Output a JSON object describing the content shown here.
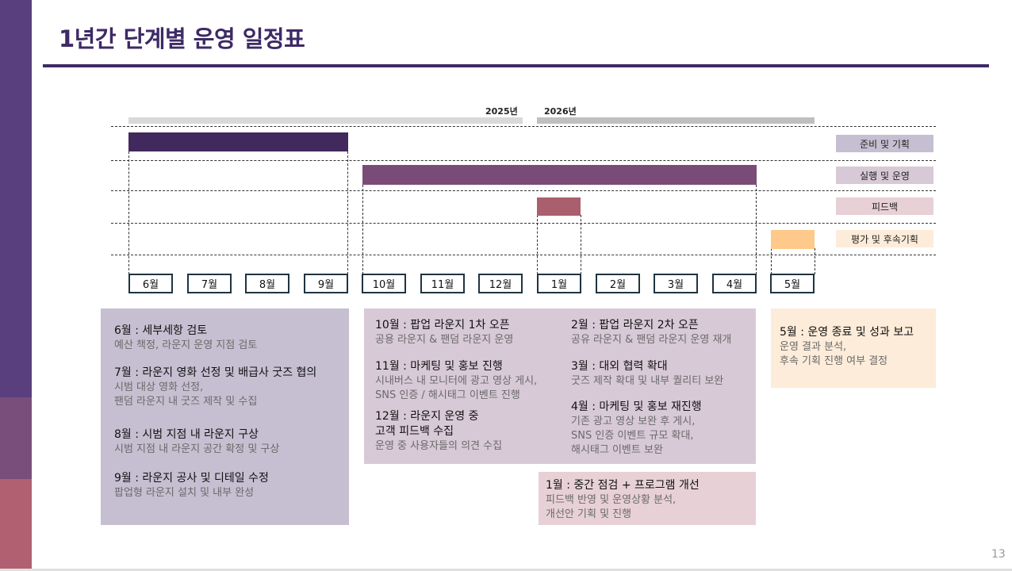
{
  "title": "1년간 단계별 운영 일정표",
  "page_number": "13",
  "years": [
    "2025년",
    "2026년"
  ],
  "phases": [
    "준비 및 기획",
    "실행 및 운영",
    "피드백",
    "평가 및 후속기획"
  ],
  "months": [
    "6월",
    "7월",
    "8월",
    "9월",
    "10월",
    "11월",
    "12월",
    "1월",
    "2월",
    "3월",
    "4월",
    "5월"
  ],
  "colors": {
    "primary": "#3d2a66",
    "prep": "#41295e",
    "exec": "#7b4b78",
    "feedback": "#a95f6e",
    "eval": "#fec98a",
    "prep_box": "#c5bfd1",
    "exec_box": "#d8c9d7",
    "feedback_box": "#e7d0d6",
    "eval_box": "#fdecd9"
  },
  "details": {
    "prep": [
      {
        "title": "6월 : 세부세항 검토",
        "desc": [
          "예산 책정, 라운지 운영 지점 검토"
        ]
      },
      {
        "title": "7월 : 라운지 영화 선정 및 배급사 굿즈 협의",
        "desc": [
          "시범 대상 영화 선정,",
          "팬덤 라운지 내 굿즈 제작 및 수집"
        ]
      },
      {
        "title": "8월 : 시범 지점 내 라운지 구상",
        "desc": [
          "시범 지점 내 라운지 공간 확정 및 구상"
        ]
      },
      {
        "title": "9월 : 라운지 공사 및 디테일 수정",
        "desc": [
          "팝업형 라운지 설치 및 내부 완성"
        ]
      }
    ],
    "exec_left": [
      {
        "title": "10월 : 팝업 라운지 1차 오픈",
        "desc": [
          "공용 라운지 & 팬덤 라운지 운영"
        ]
      },
      {
        "title": "11월 : 마케팅 및 홍보 진행",
        "desc": [
          "시내버스 내 모니터에 광고 영상 게시,",
          "SNS 인증 / 해시태그 이벤트 진행"
        ]
      },
      {
        "title": [
          "12월 : 라운지 운영 중",
          "고객 피드백 수집"
        ],
        "desc": [
          "운영 중 사용자들의 의견 수집"
        ]
      }
    ],
    "exec_right": [
      {
        "title": "2월 : 팝업 라운지 2차 오픈",
        "desc": [
          "공유 라운지 & 팬덤 라운지 운영 재개"
        ]
      },
      {
        "title": "3월 : 대외 협력 확대",
        "desc": [
          "굿즈 제작 확대 및 내부 퀄리티 보완"
        ]
      },
      {
        "title": "4월 : 마케팅 및 홍보 재진행",
        "desc": [
          "기존 광고 영상 보완 후 게시,",
          "SNS 인증 이벤트 규모 확대,",
          "해시태그 이벤트 보완"
        ]
      }
    ],
    "feedback": {
      "title": "1월 : 중간 점검 + 프로그램 개선",
      "desc": [
        "피드백 반영 및 운영상황 분석,",
        "개선안 기획 및 진행"
      ]
    },
    "eval": {
      "title": "5월 : 운영 종료 및 성과 보고",
      "desc": [
        "운영 결과 분석,",
        "후속 기획 진행 여부 결정"
      ]
    }
  }
}
